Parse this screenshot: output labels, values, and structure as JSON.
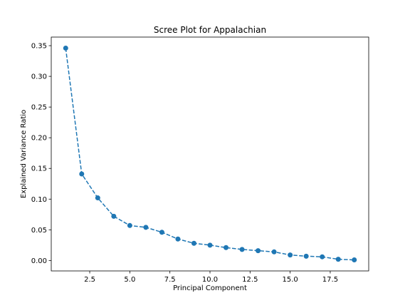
{
  "chart_data": {
    "type": "line",
    "title": "Scree Plot for Appalachian",
    "xlabel": "Principal Component",
    "ylabel": "Explained Variance Ratio",
    "xlim": [
      0.1,
      19.9
    ],
    "ylim": [
      -0.017,
      0.364
    ],
    "xticks": [
      2.5,
      5.0,
      7.5,
      10.0,
      12.5,
      15.0,
      17.5
    ],
    "xtick_labels": [
      "2.5",
      "5.0",
      "7.5",
      "10.0",
      "12.5",
      "15.0",
      "17.5"
    ],
    "yticks": [
      0.0,
      0.05,
      0.1,
      0.15,
      0.2,
      0.25,
      0.3,
      0.35
    ],
    "ytick_labels": [
      "0.00",
      "0.05",
      "0.10",
      "0.15",
      "0.20",
      "0.25",
      "0.30",
      "0.35"
    ],
    "grid": false,
    "line_style": "dashed",
    "marker": "circle",
    "color": "#1f77b4",
    "series": [
      {
        "x": [
          1,
          2,
          3,
          4,
          5,
          6,
          7,
          8,
          9,
          10,
          11,
          12,
          13,
          14,
          15,
          16,
          17,
          18,
          19
        ],
        "values": [
          0.346,
          0.141,
          0.102,
          0.072,
          0.057,
          0.054,
          0.046,
          0.035,
          0.028,
          0.025,
          0.021,
          0.018,
          0.016,
          0.014,
          0.009,
          0.007,
          0.006,
          0.002,
          0.001
        ]
      }
    ]
  }
}
